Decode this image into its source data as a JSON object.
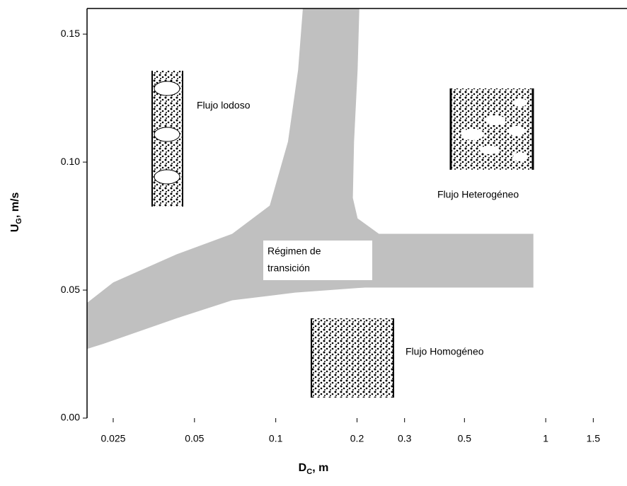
{
  "chart_data": {
    "type": "region",
    "x_label": {
      "main": "D",
      "sub": "C",
      "rest": ", m"
    },
    "y_label": {
      "main": "U",
      "sub": "G",
      "rest": ", m/s"
    },
    "xlim": [
      0.02,
      2
    ],
    "ylim": [
      0,
      0.16
    ],
    "xscale": "log",
    "xticks": [
      0.025,
      0.05,
      0.1,
      0.2,
      0.3,
      0.5,
      1,
      1.5
    ],
    "yticks": [
      {
        "value": 0,
        "label": "0.00"
      },
      0.05,
      {
        "value": 0.1,
        "label": "0.10"
      },
      0.15
    ],
    "color": "#c0c0c0",
    "region": {
      "x": [
        0.126,
        0.121,
        0.111,
        0.095,
        0.069,
        0.043,
        0.025,
        0.02,
        0.02,
        0.023,
        0.043,
        0.069,
        0.118,
        0.214,
        0.9,
        0.9,
        0.241,
        0.201,
        0.193,
        0.195,
        0.201,
        0.204
      ],
      "y": [
        0.16,
        0.136,
        0.108,
        0.083,
        0.072,
        0.064,
        0.053,
        0.045,
        0.027,
        0.029,
        0.039,
        0.046,
        0.049,
        0.051,
        0.051,
        0.072,
        0.072,
        0.078,
        0.086,
        0.108,
        0.136,
        0.16
      ]
    },
    "annotations": [
      "Flujo lodoso",
      "Flujo Heterogéneo",
      "Régimen de",
      "transición",
      "Flujo Homogéneo"
    ]
  }
}
